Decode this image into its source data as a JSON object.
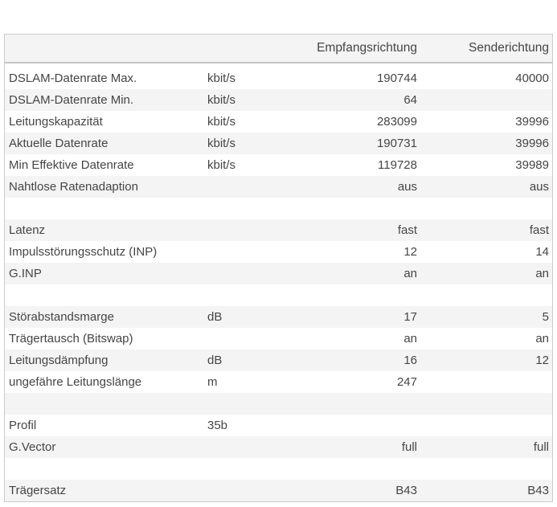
{
  "page": {
    "background": "#ffffff"
  },
  "colors": {
    "stripe_bg": "#f4f4f4",
    "header_bg": "#f4f4f4",
    "outer_border": "#cbcbcb",
    "header_border": "#c4c4c4",
    "text": "#454545"
  },
  "table": {
    "headers": {
      "label": "",
      "unit": "",
      "receive": "Empfangsrichtung",
      "send": "Senderichtung"
    },
    "rows": [
      {
        "label": "DSLAM-Datenrate Max.",
        "unit": "kbit/s",
        "receive": "190744",
        "send": "40000"
      },
      {
        "label": "DSLAM-Datenrate Min.",
        "unit": "kbit/s",
        "receive": "64",
        "send": ""
      },
      {
        "label": "Leitungskapazität",
        "unit": "kbit/s",
        "receive": "283099",
        "send": "39996"
      },
      {
        "label": "Aktuelle Datenrate",
        "unit": "kbit/s",
        "receive": "190731",
        "send": "39996"
      },
      {
        "label": "Min Effektive Datenrate",
        "unit": "kbit/s",
        "receive": "119728",
        "send": "39989"
      },
      {
        "label": "Nahtlose Ratenadaption",
        "unit": "",
        "receive": "aus",
        "send": "aus"
      },
      {
        "label": "",
        "unit": "",
        "receive": "",
        "send": ""
      },
      {
        "label": "Latenz",
        "unit": "",
        "receive": "fast",
        "send": "fast"
      },
      {
        "label": "Impulsstörungsschutz (INP)",
        "unit": "",
        "receive": "12",
        "send": "14"
      },
      {
        "label": "G.INP",
        "unit": "",
        "receive": "an",
        "send": "an"
      },
      {
        "label": "",
        "unit": "",
        "receive": "",
        "send": ""
      },
      {
        "label": "Störabstandsmarge",
        "unit": "dB",
        "receive": "17",
        "send": "5"
      },
      {
        "label": "Trägertausch (Bitswap)",
        "unit": "",
        "receive": "an",
        "send": "an"
      },
      {
        "label": "Leitungsdämpfung",
        "unit": "dB",
        "receive": "16",
        "send": "12"
      },
      {
        "label": "ungefähre Leitungslänge",
        "unit": "m",
        "receive": "247",
        "send": ""
      },
      {
        "label": "",
        "unit": "",
        "receive": "",
        "send": ""
      },
      {
        "label": "Profil",
        "unit": "35b",
        "receive": "",
        "send": ""
      },
      {
        "label": "G.Vector",
        "unit": "",
        "receive": "full",
        "send": "full"
      },
      {
        "label": "",
        "unit": "",
        "receive": "",
        "send": ""
      },
      {
        "label": "Trägersatz",
        "unit": "",
        "receive": "B43",
        "send": "B43"
      }
    ]
  }
}
